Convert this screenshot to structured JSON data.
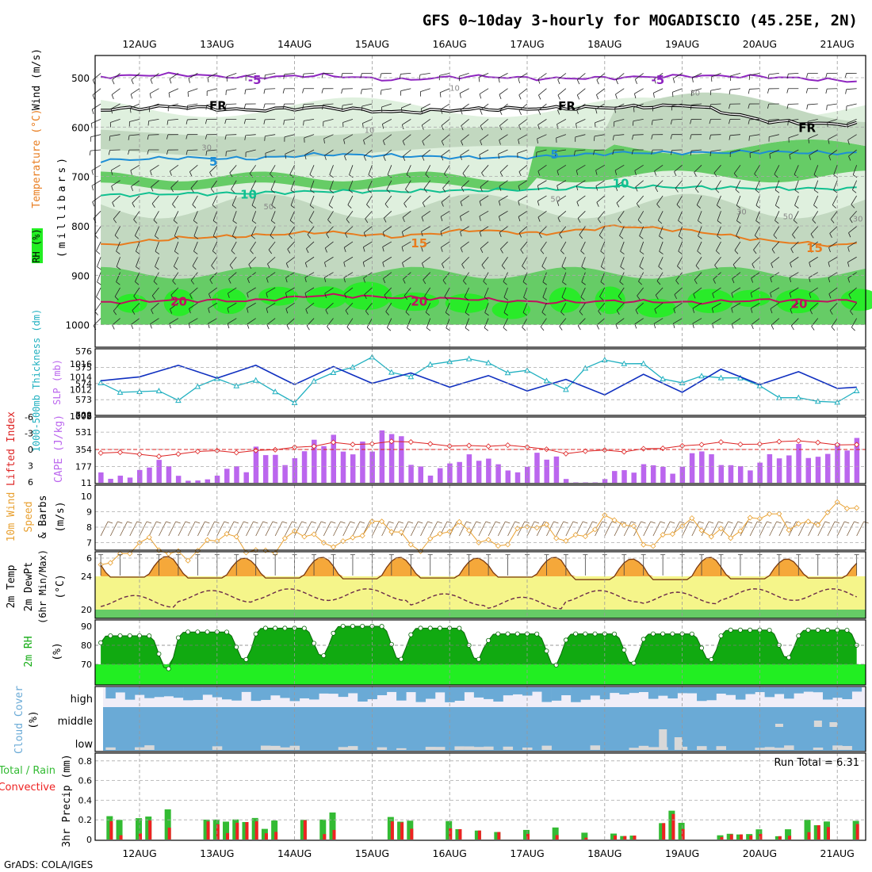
{
  "title": "GFS 0~10day 3-hourly for MOGADISCIO (45.25E, 2N)",
  "credit": "GrADS: COLA/IGES",
  "date_labels": [
    "12AUG",
    "13AUG",
    "14AUG",
    "15AUG",
    "16AUG",
    "17AUG",
    "18AUG",
    "19AUG",
    "20AUG",
    "21AUG"
  ],
  "colors": {
    "rh_light": "#dff0de",
    "rh_mid": "#c2d8c0",
    "rh_green": "#66cc66",
    "rh_bright": "#22ee22",
    "iso_m5": "#8e24c0",
    "iso_fr": "#000000",
    "iso_5": "#1e8ed6",
    "iso_10": "#10c090",
    "iso_15": "#e87c1e",
    "iso_20": "#c01060",
    "thickness": "#20b0c0",
    "slp": "#1030c0",
    "cape": "#bb66ee",
    "lifted": "#dd2222",
    "wind_speed": "#e8a030",
    "temp_fill": "#f5a83a",
    "dew_fill": "#f5f58a",
    "rh_fill": "#11aa11",
    "cloud": "#6aaad6",
    "cloud_bg": "#f0eef8",
    "precip_total": "#33bb33",
    "precip_conv": "#ee2222"
  },
  "panels": {
    "upper_air": {
      "ylabel_wind": "Wind (m/s)",
      "ylabel_temp": "Temperature (°C)",
      "ylabel_rh": "RH (%)",
      "ylabel_p": "(millibars)",
      "pressure_ticks": [
        "500",
        "600",
        "700",
        "800",
        "900",
        "1000"
      ],
      "isotherm_labels": [
        {
          "text": "-5",
          "day": 1.4,
          "p": 505,
          "color": "iso_m5"
        },
        {
          "text": "-5",
          "day": 6.6,
          "p": 505,
          "color": "iso_m5"
        },
        {
          "text": "FR",
          "day": 0.9,
          "p": 557,
          "color": "iso_fr"
        },
        {
          "text": "FR",
          "day": 5.4,
          "p": 558,
          "color": "iso_fr"
        },
        {
          "text": "FR",
          "day": 8.5,
          "p": 602,
          "color": "iso_fr"
        },
        {
          "text": "5",
          "day": 0.9,
          "p": 670,
          "color": "iso_5"
        },
        {
          "text": "5",
          "day": 5.3,
          "p": 656,
          "color": "iso_5"
        },
        {
          "text": "10",
          "day": 1.3,
          "p": 737,
          "color": "iso_10"
        },
        {
          "text": "10",
          "day": 6.1,
          "p": 714,
          "color": "iso_10"
        },
        {
          "text": "15",
          "day": 3.5,
          "p": 835,
          "color": "iso_15"
        },
        {
          "text": "15",
          "day": 8.6,
          "p": 845,
          "color": "iso_15"
        },
        {
          "text": "20",
          "day": 0.4,
          "p": 953,
          "color": "iso_20"
        },
        {
          "text": "20",
          "day": 3.5,
          "p": 953,
          "color": "iso_20"
        },
        {
          "text": "20",
          "day": 8.4,
          "p": 958,
          "color": "iso_20"
        }
      ],
      "rh_contour_labels": [
        {
          "text": "10",
          "day": 4.0,
          "p": 520
        },
        {
          "text": "30",
          "day": 7.1,
          "p": 530
        },
        {
          "text": "30",
          "day": 0.8,
          "p": 640
        },
        {
          "text": "10",
          "day": 2.9,
          "p": 605
        },
        {
          "text": "50",
          "day": 1.6,
          "p": 760
        },
        {
          "text": "50",
          "day": 5.3,
          "p": 745
        },
        {
          "text": "30",
          "day": 7.7,
          "p": 770
        },
        {
          "text": "50",
          "day": 8.3,
          "p": 780
        },
        {
          "text": "30",
          "day": 9.2,
          "p": 785
        }
      ]
    },
    "thickness_slp": {
      "ylabel_left": "1000-500mb Thickness (dm)",
      "ylabel_right": "SLP (mb)",
      "left_ticks": [
        "576",
        "575",
        "574",
        "573",
        "572"
      ],
      "right_ticks": [
        "1016",
        "1014",
        "1012"
      ],
      "right_bottom": "1008"
    },
    "cape_li": {
      "ylabel_left": "Lifted Index",
      "ylabel_right": "CAPE (J/kg)",
      "left_ticks": [
        "-6",
        "-3",
        "0",
        "3",
        "6"
      ],
      "right_ticks": [
        "708",
        "531",
        "354",
        "177",
        "11"
      ]
    },
    "wind10m": {
      "ylabel1": "10m Wind",
      "ylabel2": "Speed",
      "ylabel3": "& Barbs",
      "unit": "(m/s)",
      "ticks": [
        "10",
        "9",
        "8",
        "7",
        "6"
      ]
    },
    "temp2m": {
      "ylabel1": "2m Temp",
      "ylabel2": "2m DewPt",
      "ylabel3": "(6hr Min/Max)",
      "unit": "(°C)",
      "ticks": [
        "24",
        "20"
      ]
    },
    "rh2m": {
      "ylabel": "2m RH",
      "unit": "(%)",
      "ticks": [
        "90",
        "80",
        "70"
      ]
    },
    "cloud": {
      "ylabel": "Cloud Cover",
      "unit": "(%)",
      "levels": [
        "high",
        "middle",
        "low"
      ]
    },
    "precip": {
      "ylabel1": "Total / Rain",
      "ylabel2": "Convective",
      "ylabel3": "3hr Precip (mm)",
      "ticks": [
        "0.8",
        "0.6",
        "0.4",
        "0.2",
        "0"
      ],
      "run_total": "Run Total = 6.31"
    }
  },
  "chart_data": [
    {
      "type": "area",
      "panel": "upper_air",
      "x_unit": "day offset from 12AUG 00Z",
      "ylim": [
        1000,
        450
      ],
      "isotherms": [
        {
          "level": "-5",
          "p": [
            498,
            493,
            500,
            495,
            505,
            497,
            502,
            500,
            496,
            498,
            506,
            511
          ]
        },
        {
          "level": "FR",
          "p": [
            565,
            558,
            566,
            560,
            570,
            564,
            562,
            560,
            556,
            588,
            595,
            580
          ]
        },
        {
          "level": "5",
          "p": [
            668,
            662,
            664,
            655,
            658,
            662,
            660,
            652,
            652,
            650,
            653,
            648
          ]
        },
        {
          "level": "10",
          "p": [
            738,
            735,
            734,
            730,
            730,
            728,
            726,
            720,
            722,
            724,
            725,
            722
          ]
        },
        {
          "level": "15",
          "p": [
            840,
            825,
            820,
            812,
            822,
            808,
            816,
            800,
            810,
            830,
            840,
            815
          ]
        },
        {
          "level": "20",
          "p": [
            955,
            950,
            952,
            940,
            945,
            948,
            955,
            952,
            955,
            950,
            952,
            948
          ]
        }
      ]
    },
    {
      "type": "line",
      "panel": "thickness_slp",
      "x": [
        -0.5,
        0.0,
        0.5,
        1.0,
        1.5,
        2.0,
        2.5,
        3.0,
        3.5,
        4.0,
        4.5,
        5.0,
        5.5,
        6.0,
        6.5,
        7.0,
        7.5,
        8.0,
        8.5,
        9.0,
        9.5,
        10.0
      ],
      "series": [
        {
          "name": "1000-500mb Thickness (dm)",
          "values": [
            573.8,
            573.5,
            573.2,
            574.2,
            574.0,
            573.0,
            574.8,
            575.4,
            574.4,
            575.6,
            575.2,
            574.6,
            573.8,
            575.6,
            575.0,
            574.0,
            574.6,
            573.8,
            572.9,
            573.0,
            573.6,
            574.6
          ]
        },
        {
          "name": "SLP (mb)",
          "values": [
            1013.4,
            1014.0,
            1015.8,
            1013.8,
            1015.8,
            1012.8,
            1015.6,
            1013.0,
            1014.6,
            1012.4,
            1014.2,
            1011.8,
            1013.6,
            1011.2,
            1014.4,
            1011.6,
            1015.2,
            1012.8,
            1014.8,
            1012.2,
            1012.6,
            1013.4
          ]
        }
      ]
    },
    {
      "type": "bar",
      "panel": "cape_li",
      "categories": [
        "12AUG",
        "13AUG",
        "14AUG",
        "15AUG",
        "16AUG",
        "17AUG",
        "18AUG",
        "19AUG",
        "20AUG",
        "21AUG"
      ],
      "series": [
        {
          "name": "CAPE (J/kg)",
          "values": [
            130,
            90,
            310,
            430,
            230,
            210,
            55,
            200,
            255,
            330
          ]
        },
        {
          "name": "Lifted Index",
          "values": [
            0.9,
            0.6,
            -0.2,
            -1.3,
            -1.0,
            -0.4,
            0.5,
            -0.5,
            -1.3,
            -1.2
          ]
        }
      ]
    },
    {
      "type": "line",
      "panel": "wind10m",
      "x": [
        0,
        1,
        2,
        3,
        4,
        5,
        6,
        7,
        8,
        9
      ],
      "series": [
        {
          "name": "Speed",
          "values": [
            6.4,
            6.8,
            7.0,
            7.6,
            7.4,
            7.5,
            7.9,
            7.6,
            8.2,
            8.8
          ]
        }
      ],
      "ylim": [
        5.5,
        10
      ]
    },
    {
      "type": "area",
      "panel": "temp2m",
      "x": [
        0,
        1,
        2,
        3,
        4,
        5,
        6,
        7,
        8,
        9
      ],
      "series": [
        {
          "name": "2m Temp max",
          "values": [
            26.4,
            26.2,
            26.3,
            26.3,
            26.2,
            26.3,
            26.1,
            26.3,
            26.1,
            26.0
          ]
        },
        {
          "name": "2m Temp min",
          "values": [
            23.9,
            23.8,
            23.8,
            23.7,
            23.8,
            23.9,
            23.6,
            23.6,
            23.7,
            23.8
          ]
        },
        {
          "name": "2m DewPt",
          "values": [
            21.0,
            21.6,
            21.8,
            21.8,
            21.2,
            20.8,
            21.6,
            21.4,
            21.8,
            21.8
          ]
        }
      ],
      "ylim": [
        18.5,
        28
      ]
    },
    {
      "type": "area",
      "panel": "rh2m",
      "x": [
        0,
        1,
        2,
        3,
        4,
        5,
        6,
        7,
        8,
        9
      ],
      "series": [
        {
          "name": "2m RH max",
          "values": [
            85,
            87,
            89,
            90,
            89,
            86,
            86,
            86,
            88,
            88
          ]
        },
        {
          "name": "2m RH min",
          "values": [
            67,
            72,
            74,
            72,
            72,
            69,
            70,
            72,
            73,
            73
          ]
        }
      ],
      "ylim": [
        60,
        92
      ]
    },
    {
      "type": "bar",
      "panel": "precip",
      "categories": [
        "12AUG",
        "13AUG",
        "14AUG",
        "15AUG",
        "16AUG",
        "17AUG",
        "18AUG",
        "19AUG",
        "20AUG",
        "21AUG"
      ],
      "series": [
        {
          "name": "Total",
          "values": [
            0.33,
            0.2,
            0.26,
            0.26,
            0.2,
            0.2,
            0.07,
            0.33,
            0.1,
            0.2
          ]
        },
        {
          "name": "Convective",
          "values": [
            0.2,
            0.2,
            0.2,
            0.2,
            0.2,
            0.2,
            0.07,
            0.26,
            0.07,
            0.2
          ]
        }
      ],
      "ylim": [
        0,
        1.0
      ]
    }
  ]
}
